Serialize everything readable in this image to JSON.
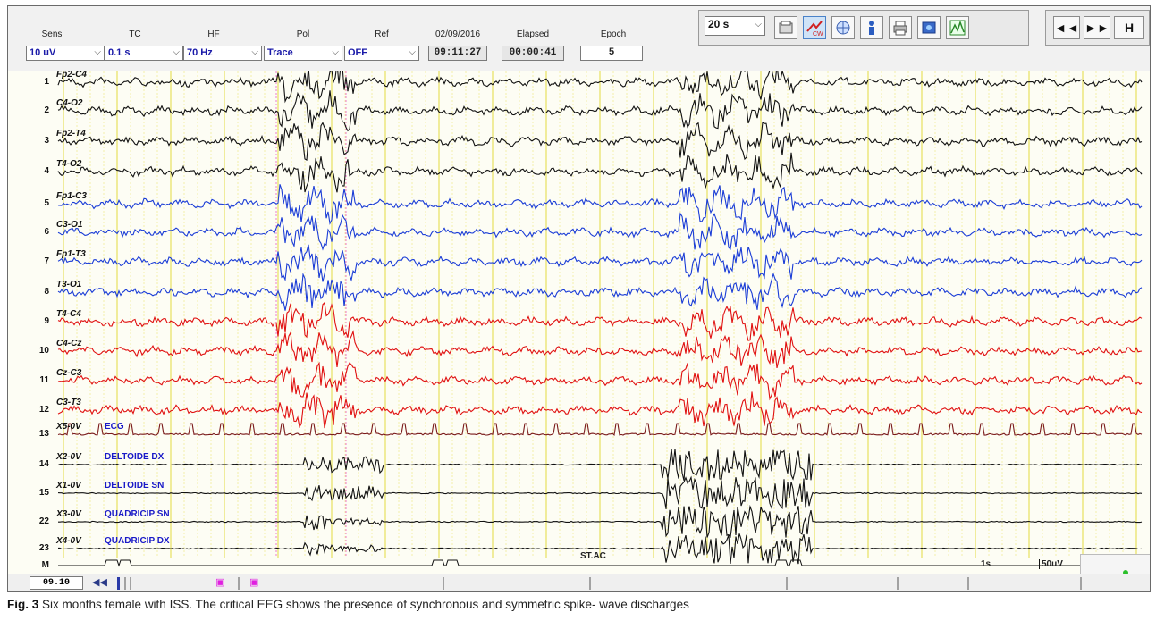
{
  "toolbar": {
    "controls": [
      {
        "label": "Sens",
        "value": "10 uV"
      },
      {
        "label": "TC",
        "value": "0.1 s"
      },
      {
        "label": "HF",
        "value": "70 Hz"
      },
      {
        "label": "Pol",
        "value": "Trace"
      },
      {
        "label": "Ref",
        "value": "OFF"
      }
    ],
    "date": "02/09/2016",
    "date_value": "09:11:27",
    "elapsed_label": "Elapsed",
    "elapsed_value": "00:00:41",
    "epoch_label": "Epoch",
    "epoch_value": "5",
    "page_length": "20 s",
    "icons": [
      "open-icon",
      "cw-icon",
      "montage-icon",
      "patient-info-icon",
      "print-icon",
      "video-icon",
      "spectrum-icon"
    ],
    "nav": [
      "◄◄",
      "►►",
      "H"
    ]
  },
  "channels": [
    {
      "num": "1",
      "deriv": "Fp2-C4",
      "color": "#111111",
      "name": ""
    },
    {
      "num": "2",
      "deriv": "C4-O2",
      "color": "#111111",
      "name": ""
    },
    {
      "num": "3",
      "deriv": "Fp2-T4",
      "color": "#111111",
      "name": ""
    },
    {
      "num": "4",
      "deriv": "T4-O2",
      "color": "#111111",
      "name": ""
    },
    {
      "num": "5",
      "deriv": "Fp1-C3",
      "color": "#1a3cd6",
      "name": ""
    },
    {
      "num": "6",
      "deriv": "C3-O1",
      "color": "#1a3cd6",
      "name": ""
    },
    {
      "num": "7",
      "deriv": "Fp1-T3",
      "color": "#1a3cd6",
      "name": ""
    },
    {
      "num": "8",
      "deriv": "T3-O1",
      "color": "#1a3cd6",
      "name": ""
    },
    {
      "num": "9",
      "deriv": "T4-C4",
      "color": "#e01010",
      "name": ""
    },
    {
      "num": "10",
      "deriv": "C4-Cz",
      "color": "#e01010",
      "name": ""
    },
    {
      "num": "11",
      "deriv": "Cz-C3",
      "color": "#e01010",
      "name": ""
    },
    {
      "num": "12",
      "deriv": "C3-T3",
      "color": "#e01010",
      "name": ""
    },
    {
      "num": "13",
      "deriv": "X5-0V",
      "color": "#7a1a1a",
      "name": "ECG"
    },
    {
      "num": "14",
      "deriv": "X2-0V",
      "color": "#111111",
      "name": "DELTOIDE DX"
    },
    {
      "num": "15",
      "deriv": "X1-0V",
      "color": "#111111",
      "name": "DELTOIDE SN"
    },
    {
      "num": "22",
      "deriv": "X3-0V",
      "color": "#111111",
      "name": "QUADRICIP SN"
    },
    {
      "num": "23",
      "deriv": "X4-0V",
      "color": "#111111",
      "name": "QUADRICIP DX"
    },
    {
      "num": "M",
      "deriv": "",
      "color": "#111111",
      "name": ""
    }
  ],
  "annotations": {
    "marker_text": "ST.AC",
    "time_scale": "1s",
    "amp_scale": "50uV"
  },
  "bottombar": {
    "time": "09.10"
  },
  "caption": {
    "label": "Fig. 3",
    "text": " Six months female with ISS. The critical EEG shows the presence of synchronous and symmetric spike- wave discharges"
  }
}
